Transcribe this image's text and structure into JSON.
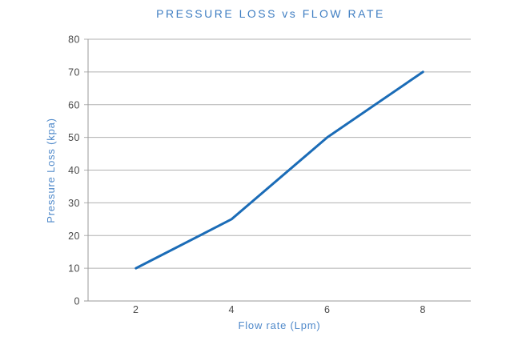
{
  "chart_data": {
    "type": "line",
    "title": "PRESSURE LOSS vs FLOW RATE",
    "xlabel": "Flow rate (Lpm)",
    "ylabel": "Pressure Loss (kpa)",
    "series": [
      {
        "name": "Pressure Loss",
        "x": [
          2,
          4,
          6,
          8
        ],
        "values": [
          10,
          25,
          50,
          70
        ]
      }
    ],
    "xlim": [
      1,
      9
    ],
    "ylim": [
      0,
      80
    ],
    "x_ticks": [
      2,
      4,
      6,
      8
    ],
    "y_ticks": [
      0,
      10,
      20,
      30,
      40,
      50,
      60,
      70,
      80
    ],
    "grid": "horizontal-only",
    "legend": "none",
    "markers": "none",
    "colors": {
      "line": "#1b6cb7",
      "title": "#3f7ec2",
      "axis_titles": "#4f89ca",
      "tick_labels": "#4a4a4a",
      "gridlines": "#b0b0b0",
      "axis_lines": "#9a9a9a",
      "background": "#ffffff"
    }
  }
}
